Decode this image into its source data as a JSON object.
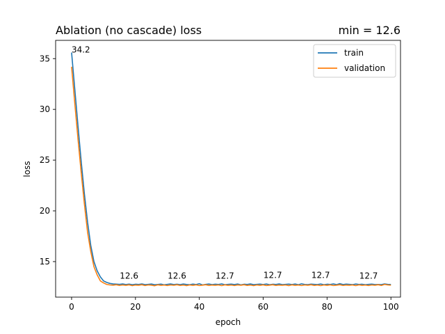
{
  "chart_data": {
    "type": "line",
    "title": "Ablation (no cascade) loss",
    "title_right": "min = 12.6",
    "xlabel": "epoch",
    "ylabel": "loss",
    "xlim": [
      -5,
      103
    ],
    "ylim": [
      11.5,
      36.8
    ],
    "xticks": [
      0,
      20,
      40,
      60,
      80,
      100
    ],
    "yticks": [
      15,
      20,
      25,
      30,
      35
    ],
    "grid": false,
    "legend_position": "top-right",
    "series": [
      {
        "name": "train",
        "color": "#1f77b4",
        "x": [
          0,
          1,
          2,
          3,
          4,
          5,
          6,
          7,
          8,
          9,
          10,
          11,
          12,
          13,
          14,
          15,
          16,
          17,
          18,
          19,
          20,
          21,
          22,
          23,
          24,
          25,
          26,
          27,
          28,
          29,
          30,
          31,
          32,
          33,
          34,
          35,
          36,
          37,
          38,
          39,
          40,
          41,
          42,
          43,
          44,
          45,
          46,
          47,
          48,
          49,
          50,
          51,
          52,
          53,
          54,
          55,
          56,
          57,
          58,
          59,
          60,
          61,
          62,
          63,
          64,
          65,
          66,
          67,
          68,
          69,
          70,
          71,
          72,
          73,
          74,
          75,
          76,
          77,
          78,
          79,
          80,
          81,
          82,
          83,
          84,
          85,
          86,
          87,
          88,
          89,
          90,
          91,
          92,
          93,
          94,
          95,
          96,
          97,
          98,
          99,
          100
        ],
        "y": [
          35.6,
          32.0,
          28.4,
          24.9,
          21.7,
          18.9,
          16.6,
          15.0,
          14.1,
          13.5,
          13.1,
          12.95,
          12.85,
          12.8,
          12.78,
          12.76,
          12.8,
          12.74,
          12.78,
          12.72,
          12.77,
          12.75,
          12.8,
          12.73,
          12.76,
          12.79,
          12.72,
          12.75,
          12.78,
          12.71,
          12.76,
          12.8,
          12.74,
          12.77,
          12.73,
          12.79,
          12.75,
          12.72,
          12.78,
          12.74,
          12.82,
          12.7,
          12.76,
          12.79,
          12.73,
          12.77,
          12.75,
          12.8,
          12.72,
          12.76,
          12.78,
          12.74,
          12.79,
          12.71,
          12.77,
          12.75,
          12.8,
          12.73,
          12.76,
          12.78,
          12.74,
          12.79,
          12.72,
          12.77,
          12.75,
          12.8,
          12.73,
          12.76,
          12.78,
          12.74,
          12.79,
          12.72,
          12.81,
          12.75,
          12.73,
          12.78,
          12.76,
          12.74,
          12.79,
          12.72,
          12.77,
          12.75,
          12.8,
          12.73,
          12.83,
          12.74,
          12.78,
          12.76,
          12.73,
          12.79,
          12.75,
          12.77,
          12.72,
          12.76,
          12.78,
          12.74,
          12.75,
          12.73,
          12.8,
          12.76,
          12.75
        ]
      },
      {
        "name": "validation",
        "color": "#ff7f0e",
        "x": [
          0,
          1,
          2,
          3,
          4,
          5,
          6,
          7,
          8,
          9,
          10,
          11,
          12,
          13,
          14,
          15,
          16,
          17,
          18,
          19,
          20,
          21,
          22,
          23,
          24,
          25,
          26,
          27,
          28,
          29,
          30,
          31,
          32,
          33,
          34,
          35,
          36,
          37,
          38,
          39,
          40,
          41,
          42,
          43,
          44,
          45,
          46,
          47,
          48,
          49,
          50,
          51,
          52,
          53,
          54,
          55,
          56,
          57,
          58,
          59,
          60,
          61,
          62,
          63,
          64,
          65,
          66,
          67,
          68,
          69,
          70,
          71,
          72,
          73,
          74,
          75,
          76,
          77,
          78,
          79,
          80,
          81,
          82,
          83,
          84,
          85,
          86,
          87,
          88,
          89,
          90,
          91,
          92,
          93,
          94,
          95,
          96,
          97,
          98,
          99,
          100
        ],
        "y": [
          34.2,
          30.6,
          27.1,
          23.8,
          20.7,
          17.9,
          16.0,
          14.5,
          13.7,
          13.1,
          12.9,
          12.75,
          12.7,
          12.68,
          12.72,
          12.65,
          12.7,
          12.66,
          12.71,
          12.63,
          12.69,
          12.67,
          12.72,
          12.64,
          12.7,
          12.68,
          12.62,
          12.71,
          12.66,
          12.69,
          12.64,
          12.7,
          12.67,
          12.72,
          12.65,
          12.69,
          12.63,
          12.7,
          12.66,
          12.71,
          12.64,
          12.68,
          12.72,
          12.65,
          12.69,
          12.67,
          12.7,
          12.63,
          12.71,
          12.66,
          12.69,
          12.64,
          12.7,
          12.67,
          12.72,
          12.65,
          12.69,
          12.63,
          12.7,
          12.66,
          12.71,
          12.64,
          12.68,
          12.72,
          12.65,
          12.69,
          12.67,
          12.7,
          12.63,
          12.71,
          12.66,
          12.69,
          12.64,
          12.7,
          12.67,
          12.72,
          12.65,
          12.69,
          12.63,
          12.7,
          12.66,
          12.71,
          12.64,
          12.68,
          12.72,
          12.65,
          12.69,
          12.67,
          12.7,
          12.63,
          12.71,
          12.66,
          12.69,
          12.64,
          12.7,
          12.67,
          12.72,
          12.65,
          12.75,
          12.7,
          12.68
        ]
      }
    ],
    "annotations": [
      {
        "x": 0,
        "y": 35.6,
        "text": "34.2"
      },
      {
        "x": 18,
        "y": 13.3,
        "text": "12.6"
      },
      {
        "x": 33,
        "y": 13.3,
        "text": "12.6"
      },
      {
        "x": 48,
        "y": 13.3,
        "text": "12.7"
      },
      {
        "x": 63,
        "y": 13.4,
        "text": "12.7"
      },
      {
        "x": 78,
        "y": 13.4,
        "text": "12.7"
      },
      {
        "x": 93,
        "y": 13.3,
        "text": "12.7"
      }
    ]
  }
}
